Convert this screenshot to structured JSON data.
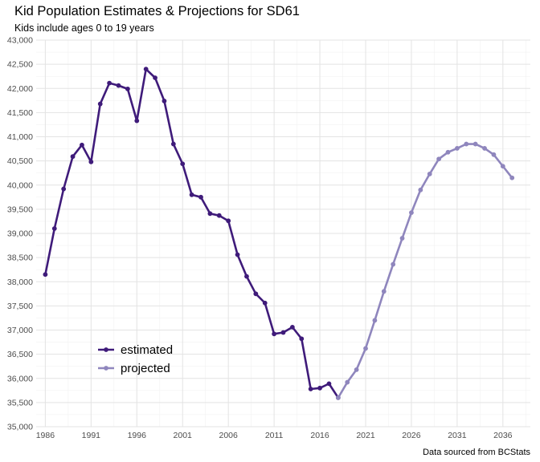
{
  "chart_data": {
    "type": "line",
    "title": "Kid Population Estimates & Projections for SD61",
    "subtitle": "Kids include ages 0 to 19 years",
    "caption": "Data sourced from BCStats",
    "xlabel": "",
    "ylabel": "",
    "xlim": [
      1985,
      2039
    ],
    "ylim": [
      35000,
      43000
    ],
    "x_ticks": [
      1986,
      1991,
      1996,
      2001,
      2006,
      2011,
      2016,
      2021,
      2026,
      2031,
      2036
    ],
    "x_tick_labels": [
      "1986",
      "1991",
      "1996",
      "2001",
      "2006",
      "2011",
      "2016",
      "2021",
      "2026",
      "2031",
      "2036"
    ],
    "y_ticks": [
      35000,
      35500,
      36000,
      36500,
      37000,
      37500,
      38000,
      38500,
      39000,
      39500,
      40000,
      40500,
      41000,
      41500,
      42000,
      42500,
      43000
    ],
    "y_tick_labels": [
      "35,000",
      "35,500",
      "36,000",
      "36,500",
      "37,000",
      "37,500",
      "38,000",
      "38,500",
      "39,000",
      "39,500",
      "40,000",
      "40,500",
      "41,000",
      "41,500",
      "42,000",
      "42,500",
      "43,000"
    ],
    "grid": true,
    "legend_position": "bottom-left",
    "series": [
      {
        "name": "estimated",
        "color": "#3f1b7a",
        "x": [
          1986,
          1987,
          1988,
          1989,
          1990,
          1991,
          1992,
          1993,
          1994,
          1995,
          1996,
          1997,
          1998,
          1999,
          2000,
          2001,
          2002,
          2003,
          2004,
          2005,
          2006,
          2007,
          2008,
          2009,
          2010,
          2011,
          2012,
          2013,
          2014,
          2015,
          2016,
          2017,
          2018
        ],
        "y": [
          38150,
          39100,
          39920,
          40590,
          40830,
          40480,
          41680,
          42110,
          42060,
          41990,
          41330,
          42400,
          42220,
          41740,
          40850,
          40440,
          39800,
          39750,
          39410,
          39370,
          39260,
          38560,
          38110,
          37750,
          37560,
          36920,
          36950,
          37060,
          36820,
          35780,
          35800,
          35890,
          35600
        ]
      },
      {
        "name": "projected",
        "color": "#8f86bd",
        "x": [
          2018,
          2019,
          2020,
          2021,
          2022,
          2023,
          2024,
          2025,
          2026,
          2027,
          2028,
          2029,
          2030,
          2031,
          2032,
          2033,
          2034,
          2035,
          2036,
          2037
        ],
        "y": [
          35600,
          35920,
          36180,
          36620,
          37200,
          37800,
          38360,
          38900,
          39430,
          39900,
          40230,
          40540,
          40680,
          40760,
          40850,
          40850,
          40760,
          40630,
          40390,
          40150
        ]
      }
    ]
  }
}
